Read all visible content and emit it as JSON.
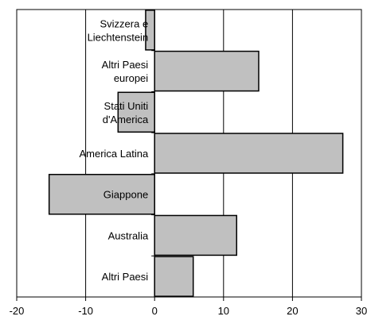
{
  "chart_data": {
    "type": "bar",
    "orientation": "horizontal",
    "categories": [
      [
        "Svizzera e",
        "Liechtenstein"
      ],
      [
        "Altri Paesi",
        "europei"
      ],
      [
        "Stati Uniti",
        "d'America"
      ],
      [
        "America Latina"
      ],
      [
        "Giappone"
      ],
      [
        "Australia"
      ],
      [
        "Altri Paesi"
      ]
    ],
    "values": [
      -1.3,
      15.1,
      -5.3,
      27.3,
      -15.3,
      11.9,
      5.6
    ],
    "xlim": [
      -20,
      30
    ],
    "xticks": [
      -20,
      -10,
      0,
      10,
      20,
      30
    ],
    "title": "",
    "xlabel": "",
    "ylabel": "",
    "grid": "vertical",
    "colors": {
      "bar_fill": "#c0c0c0",
      "bar_stroke": "#000000",
      "grid": "#000000",
      "background": "#ffffff"
    }
  }
}
